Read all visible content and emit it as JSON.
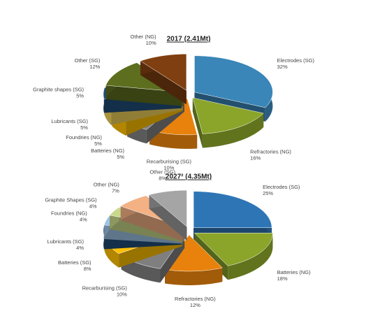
{
  "chart_data": [
    {
      "type": "pie",
      "title": "2017 (2.41Mt)",
      "categories": [
        "Electrodes (SG)",
        "Refractories (NG)",
        "Recarburising (SG)",
        "Batteries (NG)",
        "Foundries (NG)",
        "Lubricants (SG)",
        "Graphite shapes (SG)",
        "Other (SG)",
        "Other (NG)"
      ],
      "values": [
        32,
        16,
        10,
        5,
        5,
        5,
        5,
        12,
        10
      ],
      "value_labels": [
        "32%",
        "16%",
        "10%",
        "5%",
        "5%",
        "5%",
        "5%",
        "12%",
        "10%"
      ],
      "colors": [
        "#3a86b8",
        "#8aa52a",
        "#e8820c",
        "#808080",
        "#ffc000",
        "#f2d25a",
        "#1f4e79",
        "#5d6e1e",
        "#7f3f10"
      ]
    },
    {
      "type": "pie",
      "title": "2027² (4.35Mt)",
      "categories": [
        "Electrodes (SG)",
        "Batteries (NG)",
        "Refractories (NG)",
        "Recarburising (SG)",
        "Batteries (SG)",
        "Lubricants (SG)",
        "Foundries (NG)",
        "Graphite Shapes (SG)",
        "Other (NG)",
        "Other (SG)"
      ],
      "values": [
        25,
        18,
        12,
        10,
        8,
        4,
        4,
        4,
        7,
        8
      ],
      "value_labels": [
        "25%",
        "18%",
        "12%",
        "10%",
        "8%",
        "4%",
        "4%",
        "4%",
        "7%",
        "8%"
      ],
      "colors": [
        "#2e75b6",
        "#8aa52a",
        "#e8820c",
        "#7f7f7f",
        "#ffc000",
        "#1f4e79",
        "#9dc3e6",
        "#c9d98a",
        "#f4b183",
        "#a5a5a5"
      ]
    }
  ]
}
